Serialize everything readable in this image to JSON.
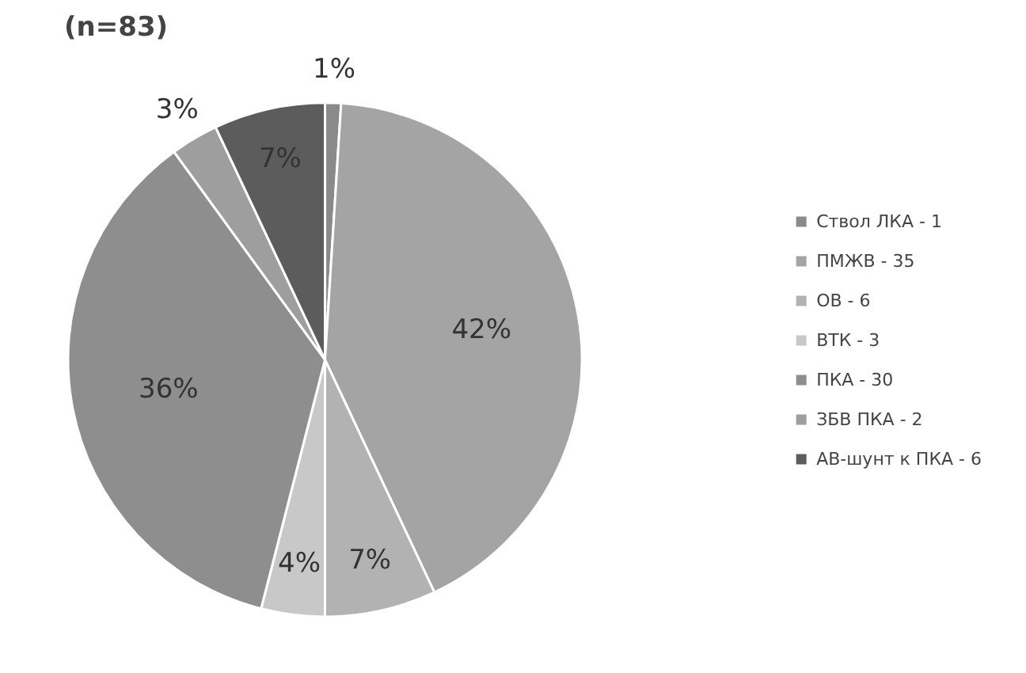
{
  "chart_data": {
    "type": "pie",
    "title": "(n=83)",
    "categories": [
      "Ствол ЛКА - 1",
      "ПМЖВ - 35",
      "ОВ - 6",
      "ВТК - 3",
      "ПКА - 30",
      "ЗБВ ПКА - 2",
      "АВ-шунт к ПКА - 6"
    ],
    "values": [
      1,
      42,
      7,
      4,
      36,
      3,
      7
    ],
    "colors": [
      "#8a8a8a",
      "#a4a4a4",
      "#b2b2b2",
      "#c8c8c8",
      "#8e8e8e",
      "#9e9e9e",
      "#5c5c5c"
    ],
    "value_labels": [
      "1%",
      "42%",
      "7%",
      "4%",
      "36%",
      "3%",
      "7%"
    ],
    "legend": "right"
  }
}
